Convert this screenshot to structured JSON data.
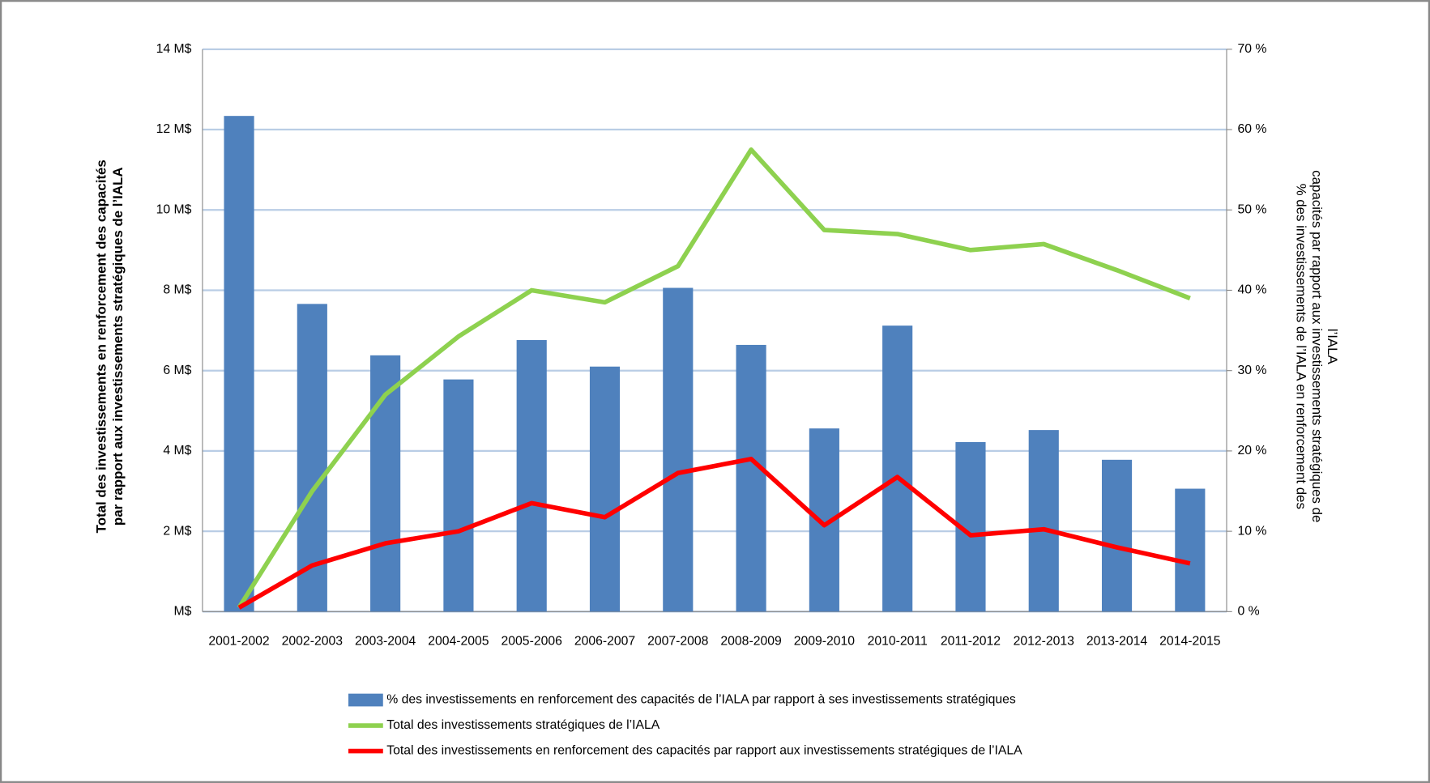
{
  "chart_data": {
    "type": "combo",
    "categories": [
      "2001-2002",
      "2002-2003",
      "2003-2004",
      "2004-2005",
      "2005-2006",
      "2006-2007",
      "2007-2008",
      "2008-2009",
      "2009-2010",
      "2010-2011",
      "2011-2012",
      "2012-2013",
      "2013-2014",
      "2014-2015"
    ],
    "y_label": [
      "Total des investissements en renforcement des capacités",
      "par rapport aux investissements stratégiques de l’IALA"
    ],
    "y2_label": [
      "% des investissements de l’IALA en renforcement des",
      "capacités par rapport aux investissements stratégiques de",
      "l’IALA"
    ],
    "ylim": [
      0,
      14
    ],
    "yticks": [
      {
        "value": 0,
        "label": "M$"
      },
      {
        "value": 2,
        "label": "2 M$"
      },
      {
        "value": 4,
        "label": "4 M$"
      },
      {
        "value": 6,
        "label": "6 M$"
      },
      {
        "value": 8,
        "label": "8 M$"
      },
      {
        "value": 10,
        "label": "10 M$"
      },
      {
        "value": 12,
        "label": "12 M$"
      },
      {
        "value": 14,
        "label": "14 M$"
      }
    ],
    "y2lim": [
      0,
      70
    ],
    "y2ticks": [
      {
        "value": 0,
        "label": "0 %"
      },
      {
        "value": 10,
        "label": "10 %"
      },
      {
        "value": 20,
        "label": "20 %"
      },
      {
        "value": 30,
        "label": "30 %"
      },
      {
        "value": 40,
        "label": "40 %"
      },
      {
        "value": 50,
        "label": "50 %"
      },
      {
        "value": 60,
        "label": "60 %"
      },
      {
        "value": 70,
        "label": "70 %"
      }
    ],
    "grid": true,
    "legend": "bottom",
    "series": [
      {
        "name": "% des investissements en renforcement des capacités de l’IALA par rapport à ses investissements stratégiques",
        "type": "bar",
        "axis": "y2",
        "color": "#4f81bd",
        "values": [
          61.7,
          38.3,
          31.9,
          28.9,
          33.8,
          30.5,
          40.3,
          33.2,
          22.8,
          35.6,
          21.1,
          22.6,
          18.9,
          15.3
        ]
      },
      {
        "name": "Total des investissements stratégiques de l’IALA",
        "type": "line",
        "color": "#8ed14f",
        "values": [
          0.1,
          3.0,
          5.4,
          6.85,
          8.0,
          7.7,
          8.6,
          11.5,
          9.5,
          9.4,
          9.0,
          9.15,
          8.5,
          7.8
        ]
      },
      {
        "name": "Total des investissements en renforcement des capacités par rapport aux investissements stratégiques de l’IALA",
        "type": "line",
        "color": "#ff0000",
        "values": [
          0.1,
          1.15,
          1.7,
          2.0,
          2.7,
          2.35,
          3.45,
          3.8,
          2.15,
          3.35,
          1.9,
          2.05,
          1.6,
          1.2
        ]
      }
    ]
  }
}
